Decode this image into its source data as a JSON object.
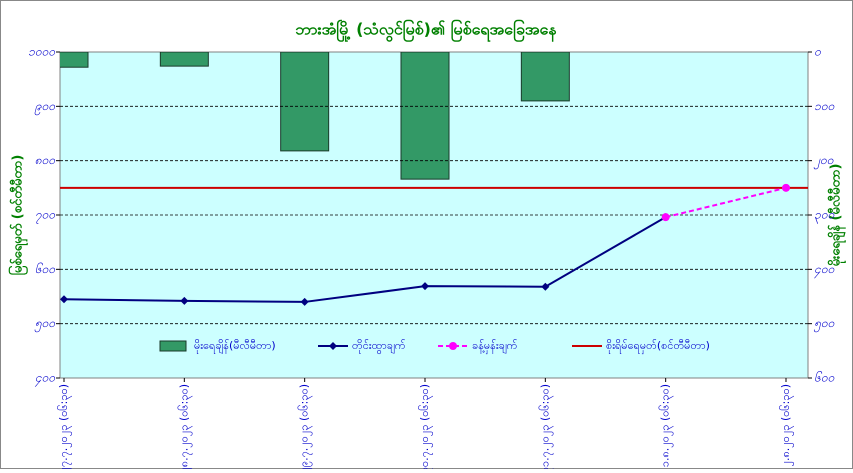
{
  "chart_data": {
    "type": "combo",
    "title": "ဘားအံမြို့ (သံလွင်မြစ်)၏ မြစ်ရေအခြေအနေ",
    "ylabel": "မြစ်ရေမှတ် (စင်တီမီတာ)",
    "y2label": "မိုးရေချိန် (မီလီမီတာ)",
    "categories": [
      "၂၇.၇.၂၀၂၃ (၀၆:၃၀)",
      "၂၈.၇.၂၀၂၃ (၀၆:၃၀)",
      "၂၉.၇.၂၀၂၃ (၀၆:၃၀)",
      "၃၀.၇.၂၀၂၃ (၀၆:၃၀)",
      "၃၁.၇.၂၀၂၃ (၀၆:၃၀)",
      "၁.၈.၂၀၂၃ (၀၆:၃၀)",
      "၂.၈.၂၀၂၃ (၀၆:၃၀)"
    ],
    "series": [
      {
        "name": "မိုးရေချိန်(မီလီမီတာ)",
        "kind": "bar",
        "axis": "y2",
        "color": "#339966",
        "values": [
          28,
          26,
          182,
          234,
          90,
          null,
          null
        ]
      },
      {
        "name": "တိုင်းထွာချက်",
        "kind": "line",
        "color": "#000080",
        "marker": "diamond",
        "values": [
          545,
          542,
          540,
          569,
          568,
          696,
          null
        ]
      },
      {
        "name": "ခန့်မှန်းချက်",
        "kind": "line",
        "dashed": true,
        "color": "#ff00ff",
        "marker": "circle",
        "values": [
          null,
          null,
          null,
          null,
          null,
          696,
          750
        ]
      },
      {
        "name": "စိုးရိမ်ရေမှတ်(စင်တီမီတာ)",
        "kind": "hline",
        "color": "#cc0000",
        "value": 750
      }
    ],
    "ylim": [
      400,
      1000
    ],
    "yticks": [
      {
        "value": 400,
        "label": "၄၀၀"
      },
      {
        "value": 500,
        "label": "၅၀၀"
      },
      {
        "value": 600,
        "label": "၆၀၀"
      },
      {
        "value": 700,
        "label": "၇၀၀"
      },
      {
        "value": 800,
        "label": "၈၀၀"
      },
      {
        "value": 900,
        "label": "၉၀၀"
      },
      {
        "value": 1000,
        "label": "၁၀၀၀"
      }
    ],
    "y2lim": [
      600,
      0
    ],
    "y2ticks": [
      {
        "value": 0,
        "label": "၀"
      },
      {
        "value": 100,
        "label": "၁၀၀"
      },
      {
        "value": 200,
        "label": "၂၀၀"
      },
      {
        "value": 300,
        "label": "၃၀၀"
      },
      {
        "value": 400,
        "label": "၄၀၀"
      },
      {
        "value": 500,
        "label": "၅၀၀"
      },
      {
        "value": 600,
        "label": "၆၀၀"
      }
    ],
    "grid": true
  }
}
